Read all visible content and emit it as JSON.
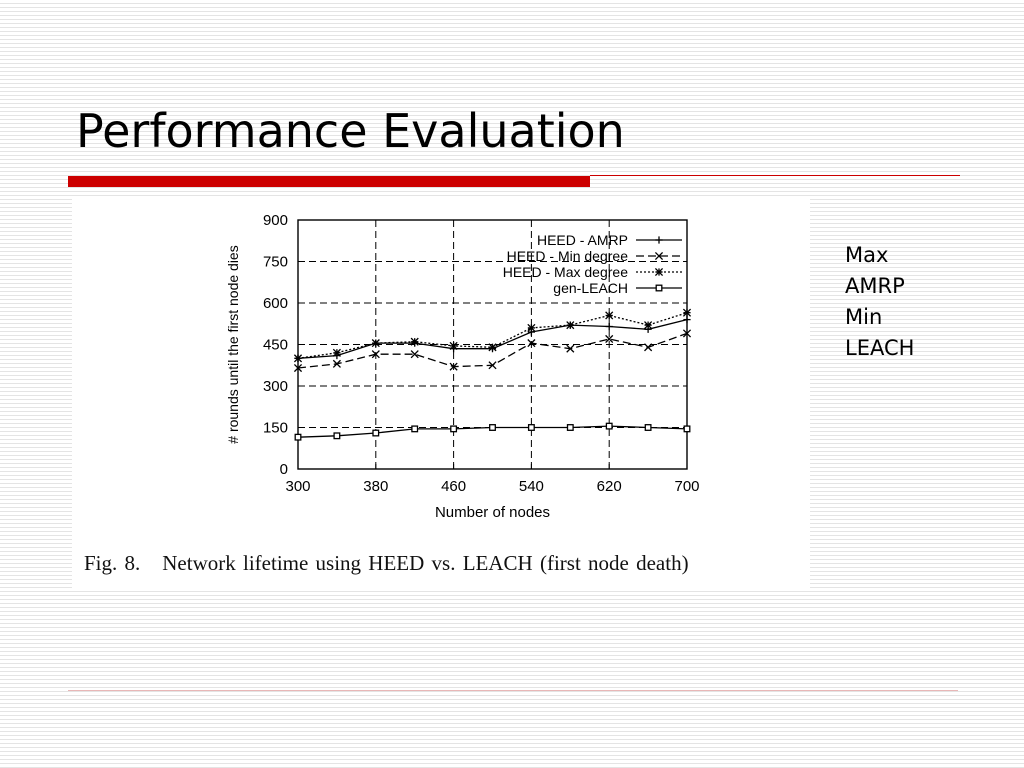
{
  "slide": {
    "title": "Performance Evaluation",
    "notes": [
      "Max",
      "AMRP",
      "Min",
      "LEACH"
    ],
    "accent_color": "#cc0000"
  },
  "figure": {
    "caption_number": "Fig. 8.",
    "caption_text": "Network lifetime using HEED vs. LEACH (first node death)"
  },
  "chart_data": {
    "type": "line",
    "xlabel": "Number of nodes",
    "ylabel": "# rounds until the first node dies",
    "xlim": [
      300,
      700
    ],
    "ylim": [
      0,
      900
    ],
    "x_ticks": [
      300,
      380,
      460,
      540,
      620,
      700
    ],
    "y_ticks": [
      0,
      150,
      300,
      450,
      600,
      750,
      900
    ],
    "grid": true,
    "legend_position": "top-right",
    "x": [
      300,
      340,
      380,
      420,
      460,
      500,
      540,
      580,
      620,
      660,
      700
    ],
    "series": [
      {
        "name": "HEED - AMRP",
        "marker": "plus",
        "dash": "solid",
        "values": [
          400,
          410,
          455,
          455,
          435,
          435,
          495,
          520,
          515,
          505,
          540
        ]
      },
      {
        "name": "HEED - Min degree",
        "marker": "x",
        "dash": "long-dash",
        "values": [
          365,
          380,
          415,
          415,
          370,
          375,
          455,
          435,
          470,
          440,
          490
        ]
      },
      {
        "name": "HEED - Max degree",
        "marker": "asterisk",
        "dash": "dotted",
        "values": [
          400,
          420,
          455,
          460,
          445,
          440,
          510,
          520,
          555,
          520,
          565
        ]
      },
      {
        "name": "gen-LEACH",
        "marker": "square",
        "dash": "solid",
        "values": [
          115,
          120,
          130,
          145,
          145,
          150,
          150,
          150,
          155,
          150,
          145
        ]
      }
    ]
  }
}
